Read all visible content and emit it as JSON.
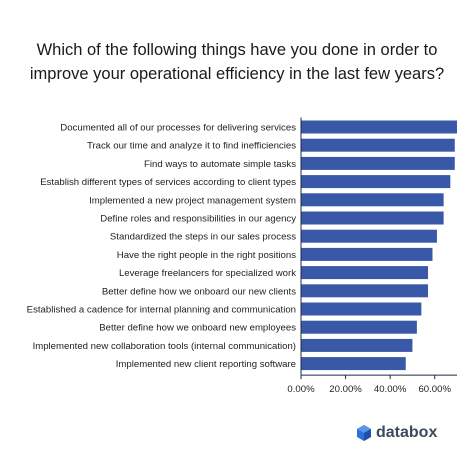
{
  "title_lines": [
    "Which of the following things have you done in order to",
    "improve your operational efficiency in the last few years?"
  ],
  "brand": {
    "name": "databox"
  },
  "colors": {
    "bar": "#3a58a8",
    "axis": "#1f2a44",
    "text": "#222222"
  },
  "chart_data": {
    "type": "bar",
    "orientation": "horizontal",
    "categories": [
      "Documented all of our processes for delivering services",
      "Track our time and analyze it to find inefficiencies",
      "Find ways to automate simple tasks",
      "Establish different types of services according to client types",
      "Implemented a new project management system",
      "Define roles and responsibilities in our agency",
      "Standardized the steps in our sales process",
      "Have the right people in the right positions",
      "Leverage freelancers for specialized work",
      "Better define how we onboard our new clients",
      "Established a cadence for internal planning and communication",
      "Better define how we onboard new employees",
      "Implemented new collaboration tools (internal communication)",
      "Implemented new client reporting software"
    ],
    "values": [
      70,
      69,
      69,
      67,
      64,
      64,
      61,
      59,
      57,
      57,
      54,
      52,
      50,
      47
    ],
    "xlim": [
      0,
      70
    ],
    "x_ticks": [
      "0.00%",
      "20.00%",
      "40.00%",
      "60.00%"
    ],
    "x_tick_values": [
      0,
      20,
      40,
      60
    ],
    "grid": false
  }
}
